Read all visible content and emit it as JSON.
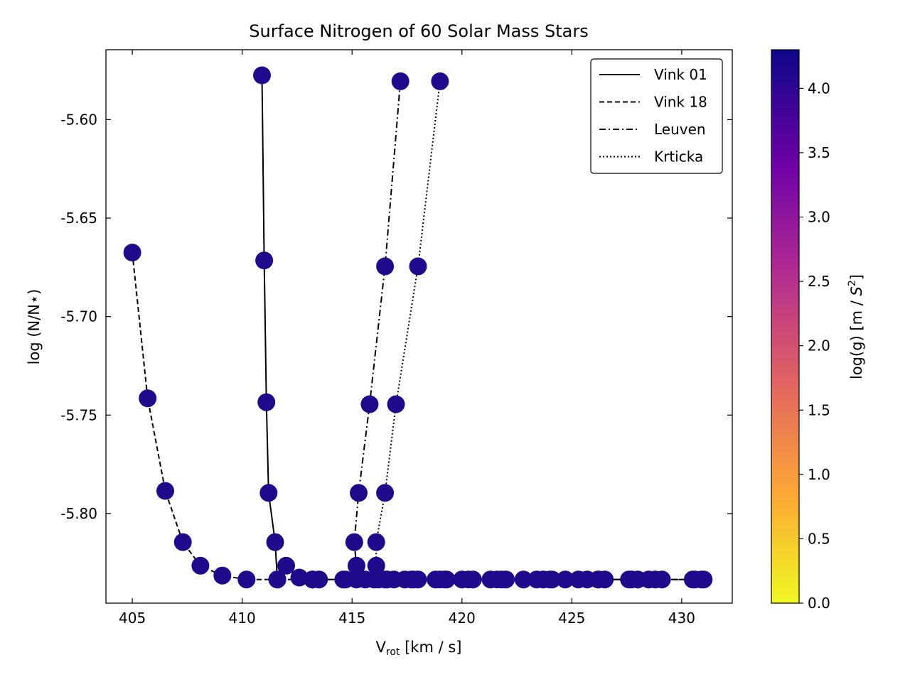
{
  "chart_data": {
    "type": "scatter",
    "title": "Surface Nitrogen of 60 Solar Mass Stars",
    "xlabel": {
      "main": "V",
      "sub": "rot",
      "rest": " [km / s]"
    },
    "ylabel": "log (N/N⋆)",
    "xlim": [
      403.8,
      432.3
    ],
    "ylim": [
      -5.8455,
      -5.5645
    ],
    "x_ticks": [
      405,
      410,
      415,
      420,
      425,
      430
    ],
    "x_tick_labels": [
      "405",
      "410",
      "415",
      "420",
      "425",
      "430"
    ],
    "y_ticks": [
      -5.6,
      -5.65,
      -5.7,
      -5.75,
      -5.8
    ],
    "y_tick_labels": [
      "-5.60",
      "-5.65",
      "-5.70",
      "-5.75",
      "-5.80"
    ],
    "marker_color": "#1e0b8c",
    "colorbar": {
      "label": "log(g) [m / s²]",
      "label_main": "log(g) [m / ",
      "label_s": "S",
      "label_exp": "2",
      "label_end": "]",
      "range": [
        0.0,
        4.3
      ],
      "ticks": [
        0.0,
        0.5,
        1.0,
        1.5,
        2.0,
        2.5,
        3.0,
        3.5,
        4.0
      ],
      "tick_labels": [
        "0.0",
        "0.5",
        "1.0",
        "1.5",
        "2.0",
        "2.5",
        "3.0",
        "3.5",
        "4.0"
      ],
      "colors": [
        "#f0f921",
        "#fca636",
        "#e16462",
        "#b12a90",
        "#6a00a8",
        "#0d0887"
      ]
    },
    "legend_position": "top-right",
    "series": [
      {
        "name": "Vink 01",
        "dash": "solid",
        "points": [
          [
            410.9,
            -5.5775
          ],
          [
            411.0,
            -5.6715
          ],
          [
            411.1,
            -5.7435
          ],
          [
            411.2,
            -5.7895
          ],
          [
            411.5,
            -5.8145
          ],
          [
            411.6,
            -5.8335
          ],
          [
            412.0,
            -5.8265
          ],
          [
            412.6,
            -5.8325
          ],
          [
            413.2,
            -5.8335
          ],
          [
            413.5,
            -5.8335
          ],
          [
            414.6,
            -5.8335
          ],
          [
            415.2,
            -5.8335
          ],
          [
            416.0,
            -5.8335
          ],
          [
            416.9,
            -5.8335
          ],
          [
            418.0,
            -5.8335
          ],
          [
            419.0,
            -5.8335
          ],
          [
            420.3,
            -5.8335
          ],
          [
            421.6,
            -5.8335
          ],
          [
            422.8,
            -5.8335
          ],
          [
            424.0,
            -5.8335
          ],
          [
            425.3,
            -5.8335
          ],
          [
            426.5,
            -5.8335
          ],
          [
            427.7,
            -5.8335
          ],
          [
            429.1,
            -5.8335
          ]
        ]
      },
      {
        "name": "Vink 18",
        "dash": "dashed",
        "points": [
          [
            405.0,
            -5.6675
          ],
          [
            405.7,
            -5.7415
          ],
          [
            406.5,
            -5.7885
          ],
          [
            407.3,
            -5.8145
          ],
          [
            408.1,
            -5.8265
          ],
          [
            409.1,
            -5.8315
          ],
          [
            410.2,
            -5.8335
          ],
          [
            411.6,
            -5.8335
          ],
          [
            413.2,
            -5.8335
          ],
          [
            414.7,
            -5.8335
          ],
          [
            416.2,
            -5.8335
          ],
          [
            417.7,
            -5.8335
          ],
          [
            419.2,
            -5.8335
          ],
          [
            420.5,
            -5.8335
          ],
          [
            421.8,
            -5.8335
          ],
          [
            423.4,
            -5.8335
          ],
          [
            424.7,
            -5.8335
          ],
          [
            426.2,
            -5.8335
          ],
          [
            427.6,
            -5.8335
          ],
          [
            428.8,
            -5.8335
          ],
          [
            430.5,
            -5.8335
          ],
          [
            431.0,
            -5.8335
          ]
        ]
      },
      {
        "name": "Leuven",
        "dash": "dashdot",
        "points": [
          [
            417.2,
            -5.5805
          ],
          [
            416.5,
            -5.6745
          ],
          [
            415.8,
            -5.7445
          ],
          [
            415.3,
            -5.7895
          ],
          [
            415.1,
            -5.8145
          ],
          [
            415.2,
            -5.8265
          ],
          [
            415.6,
            -5.8335
          ],
          [
            416.6,
            -5.8335
          ],
          [
            417.8,
            -5.8335
          ],
          [
            419.3,
            -5.8335
          ],
          [
            421.3,
            -5.8335
          ],
          [
            423.7,
            -5.8335
          ],
          [
            425.7,
            -5.8335
          ],
          [
            428.0,
            -5.8335
          ],
          [
            430.9,
            -5.8335
          ]
        ]
      },
      {
        "name": "Krticka",
        "dash": "dotted",
        "points": [
          [
            419.0,
            -5.5805
          ],
          [
            418.0,
            -5.6745
          ],
          [
            417.0,
            -5.7445
          ],
          [
            416.5,
            -5.7895
          ],
          [
            416.1,
            -5.8145
          ],
          [
            416.1,
            -5.8265
          ],
          [
            416.5,
            -5.8335
          ],
          [
            417.4,
            -5.8335
          ],
          [
            418.8,
            -5.8335
          ],
          [
            420.0,
            -5.8335
          ],
          [
            422.0,
            -5.8335
          ],
          [
            424.1,
            -5.8335
          ],
          [
            426.2,
            -5.8335
          ],
          [
            428.5,
            -5.8335
          ],
          [
            430.6,
            -5.8335
          ]
        ]
      }
    ]
  }
}
